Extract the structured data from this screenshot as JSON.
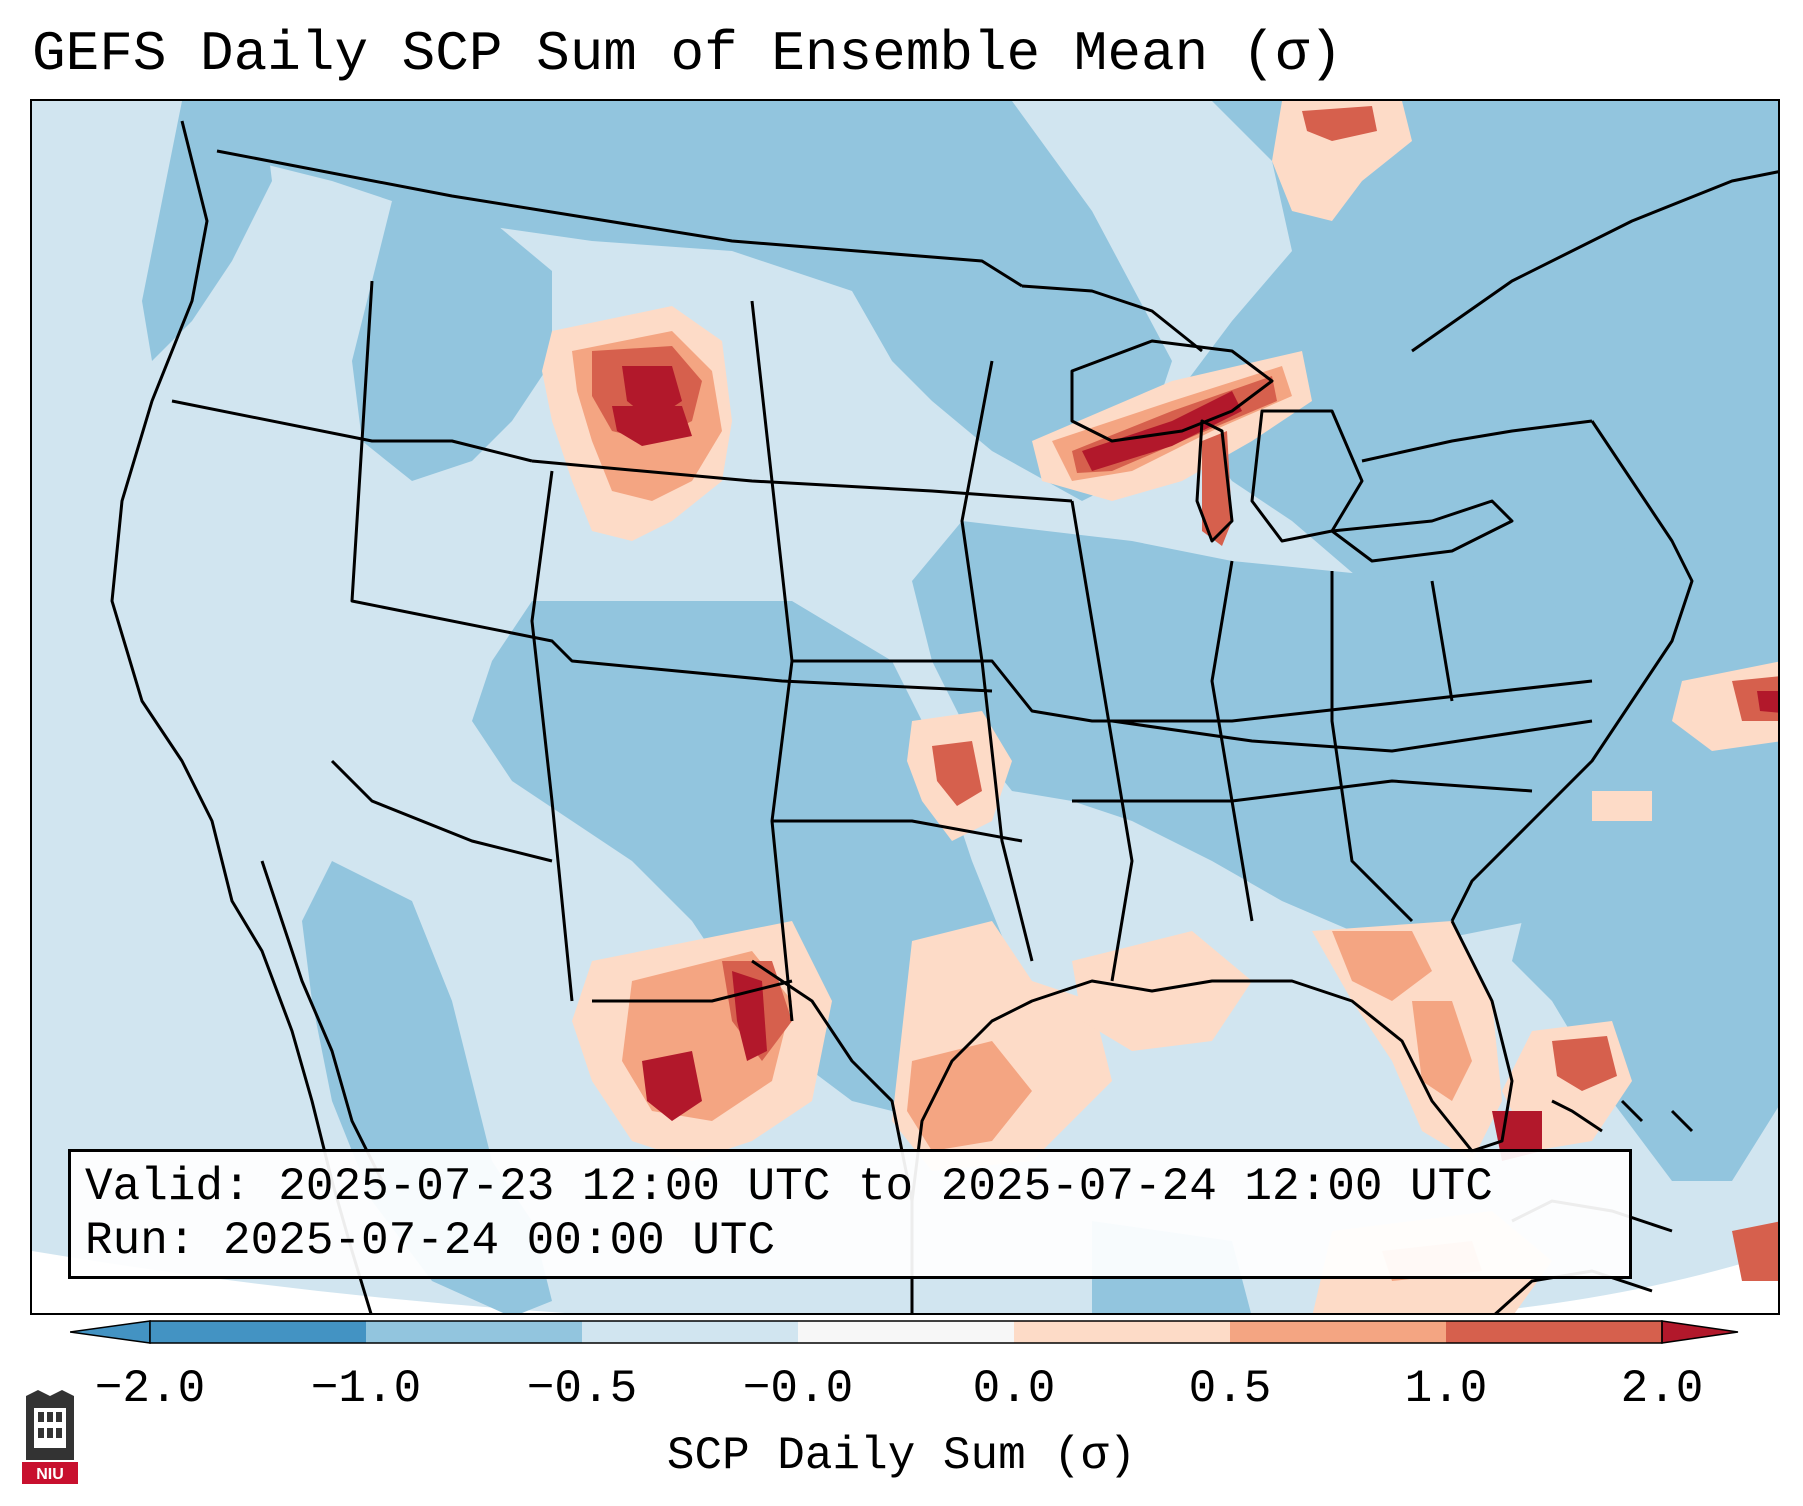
{
  "title": "GEFS Daily SCP Sum of Ensemble Mean (σ)",
  "info": {
    "valid_label": "Valid:",
    "valid_value": "2025-07-23 12:00 UTC to 2025-07-24 12:00 UTC",
    "run_label": "Run:",
    "run_value": "2025-07-24 00:00 UTC"
  },
  "colorbar": {
    "label": "SCP Daily Sum (σ)",
    "ticks": [
      "−2.0",
      "−1.0",
      "−0.5",
      "−0.0",
      "0.0",
      "0.5",
      "1.0",
      "2.0"
    ],
    "colors": {
      "extend_low": "#4393c3",
      "bin_m2_m1": "#4393c3",
      "bin_m1_m05": "#92c5de",
      "bin_m05_0": "#d1e5f0",
      "bin_0_0": "#f7f7f7",
      "bin_0_05": "#fddbc7",
      "bin_05_1": "#f4a582",
      "bin_1_2": "#d6604d",
      "extend_high": "#b2182b"
    }
  },
  "map": {
    "projection": "Lambert conformal, CONUS",
    "colors": {
      "background": "#d1e5f0",
      "medium_blue": "#92c5de",
      "light_pink": "#fddbc7",
      "salmon": "#f4a582",
      "red": "#d6604d",
      "dark_red": "#b2182b",
      "boundaries": "#000000"
    },
    "hotspots": [
      {
        "region": "Wyoming / Montana",
        "max_sigma": 2.0
      },
      {
        "region": "Upper Michigan / Wisconsin",
        "max_sigma": 2.0
      },
      {
        "region": "Lake Michigan",
        "max_sigma": 1.0
      },
      {
        "region": "Oklahoma",
        "max_sigma": 1.0
      },
      {
        "region": "West Texas / Chihuahua",
        "max_sigma": 2.0
      },
      {
        "region": "Texas Gulf Coast",
        "max_sigma": 1.0
      },
      {
        "region": "Florida",
        "max_sigma": 1.0
      },
      {
        "region": "Bahamas",
        "max_sigma": 1.0
      },
      {
        "region": "Western Atlantic",
        "max_sigma": 2.0
      }
    ]
  },
  "logo": {
    "text": "NIU",
    "icon": "university-tower-icon"
  }
}
